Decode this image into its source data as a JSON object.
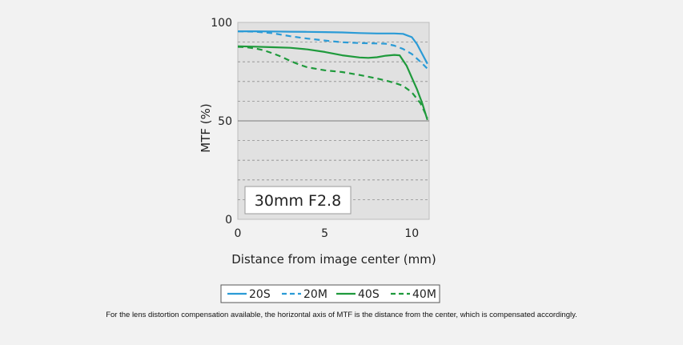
{
  "chart_data": {
    "type": "line",
    "title": "",
    "lens_label": "30mm F2.8",
    "xlabel": "Distance from image center (mm)",
    "ylabel": "MTF (%)",
    "xlim": [
      0,
      11
    ],
    "ylim": [
      0,
      100
    ],
    "x_ticks": [
      0,
      5,
      10
    ],
    "x_tick_labels": [
      "0",
      "5",
      "10"
    ],
    "y_ticks": [
      0,
      50,
      100
    ],
    "y_tick_labels": [
      "0",
      "50",
      "100"
    ],
    "grid": "horizontal dashed lines every 10%",
    "legend_position": "bottom-center",
    "series": [
      {
        "name": "20S",
        "color": "#2b9bd6",
        "dash": "solid",
        "x": [
          0,
          1,
          2,
          3,
          4,
          5,
          6,
          7,
          8,
          9,
          9.5,
          10,
          10.3,
          10.6,
          10.9
        ],
        "y": [
          95.5,
          95.5,
          95.4,
          95.3,
          95.2,
          95.1,
          94.9,
          94.6,
          94.4,
          94.4,
          94.2,
          92.5,
          89,
          84,
          79
        ]
      },
      {
        "name": "20M",
        "color": "#2b9bd6",
        "dash": "dashed",
        "x": [
          0,
          1,
          2,
          3,
          4,
          5,
          6,
          7,
          8,
          8.5,
          9,
          9.5,
          10,
          10.5,
          10.9
        ],
        "y": [
          95.5,
          95.3,
          94.5,
          93,
          91.8,
          90.8,
          89.9,
          89.5,
          89.3,
          89.2,
          88.2,
          86.5,
          84,
          80,
          76.5
        ]
      },
      {
        "name": "40S",
        "color": "#1f9a3c",
        "dash": "solid",
        "x": [
          0,
          1,
          2,
          3,
          4,
          5,
          6,
          7,
          7.5,
          8,
          8.5,
          9,
          9.3,
          9.7,
          10,
          10.3,
          10.6,
          10.9
        ],
        "y": [
          87.9,
          87.7,
          87.4,
          87.1,
          86.3,
          85,
          83.3,
          82.2,
          82,
          82.3,
          83.1,
          83.5,
          83.3,
          78,
          72,
          66,
          59,
          50.5
        ]
      },
      {
        "name": "40M",
        "color": "#1f9a3c",
        "dash": "dashed",
        "x": [
          0,
          0.5,
          1,
          1.5,
          2,
          2.5,
          3,
          3.5,
          4,
          5,
          6,
          7,
          8,
          8.5,
          9,
          9.5,
          10,
          10.5,
          10.9
        ],
        "y": [
          87.6,
          87.4,
          86.8,
          85.8,
          84.3,
          82.6,
          80.5,
          78.7,
          77.2,
          75.7,
          74.8,
          73.3,
          71.5,
          70.5,
          69.3,
          67.8,
          64.5,
          59,
          51.5
        ]
      }
    ]
  },
  "footnote": "For the lens distortion compensation available, the horizontal axis of MTF is the distance from the center, which is compensated accordingly."
}
